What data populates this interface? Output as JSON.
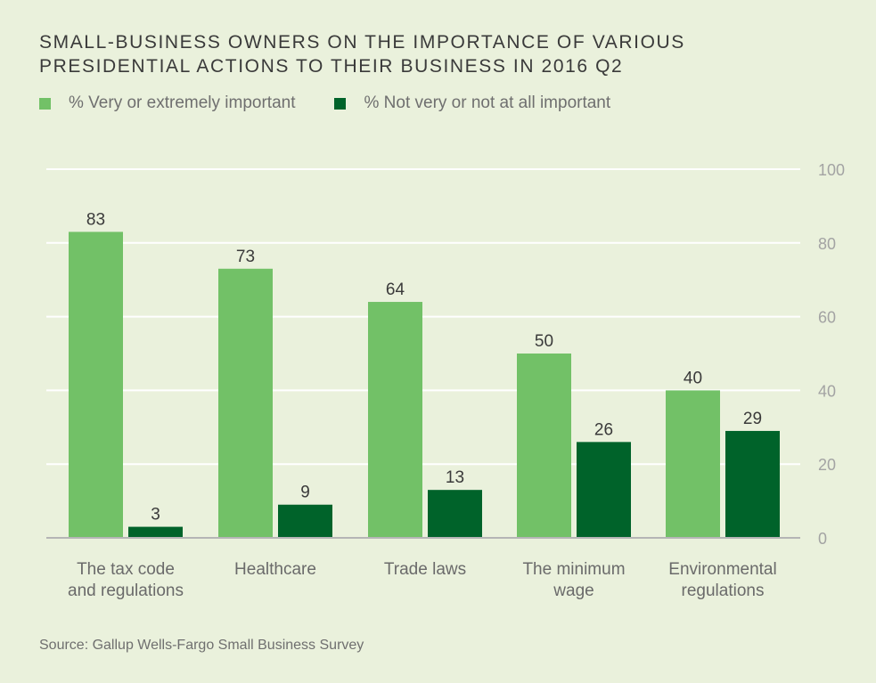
{
  "chart_data": {
    "type": "bar",
    "title_lines": [
      "SMALL-BUSINESS OWNERS ON THE IMPORTANCE OF VARIOUS",
      "PRESIDENTIAL ACTIONS TO THEIR BUSINESS IN 2016 Q2"
    ],
    "categories": [
      [
        "The tax code",
        "and regulations"
      ],
      [
        "Healthcare"
      ],
      [
        "Trade laws"
      ],
      [
        "The minimum",
        "wage"
      ],
      [
        "Environmental",
        "regulations"
      ]
    ],
    "series": [
      {
        "name": "% Very or extremely important",
        "color": "#72c167",
        "values": [
          83,
          73,
          64,
          50,
          40
        ]
      },
      {
        "name": "% Not very or not at all important",
        "color": "#00632a",
        "values": [
          3,
          9,
          13,
          26,
          29
        ]
      }
    ],
    "ylim": [
      0,
      100
    ],
    "yticks": [
      0,
      20,
      40,
      60,
      80,
      100
    ],
    "grid": true,
    "legend_position": "top-left",
    "source": "Source: Gallup Wells-Fargo Small Business Survey"
  }
}
